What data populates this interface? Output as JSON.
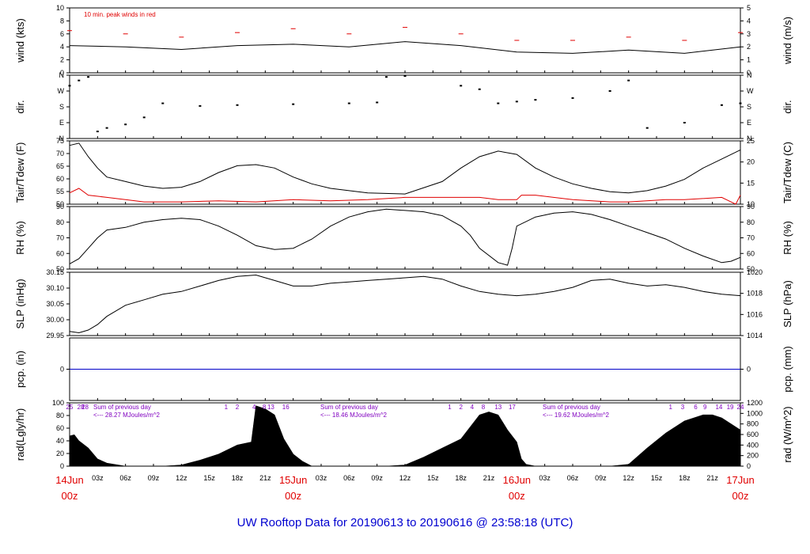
{
  "chart_data": {
    "type": "line",
    "title": "UW Rooftop Data for 20190613  to  20190616 @ 23:58:18  (UTC)",
    "x_tick_labels": [
      "03z",
      "06z",
      "09z",
      "12z",
      "15z",
      "18z",
      "21z",
      "03z",
      "06z",
      "09z",
      "12z",
      "15z",
      "18z",
      "21z",
      "03z",
      "06z",
      "09z",
      "12z",
      "15z",
      "18z",
      "21z"
    ],
    "day_labels": [
      {
        "date": "14Jun",
        "hour": "00z"
      },
      {
        "date": "15Jun",
        "hour": "00z"
      },
      {
        "date": "16Jun",
        "hour": "00z"
      },
      {
        "date": "17Jun",
        "hour": "00z"
      }
    ],
    "panels": [
      {
        "id": "wind",
        "ylabel_left": "wind (kts)",
        "ylabel_right": "wind (m/s)",
        "ylim": [
          0,
          10
        ],
        "left_ticks": [
          "0",
          "2",
          "4",
          "6",
          "8",
          "10"
        ],
        "right_ticks": [
          "0",
          "1",
          "2",
          "3",
          "4",
          "5"
        ],
        "annotation": "10 min. peak winds in red",
        "series": [
          {
            "name": "wind",
            "x": [
              0,
              6,
              12,
              18,
              24,
              30,
              36,
              42,
              48,
              54,
              60,
              66,
              72
            ],
            "y": [
              4.2,
              4.0,
              3.6,
              4.2,
              4.4,
              4.0,
              4.8,
              4.2,
              3.2,
              3.0,
              3.5,
              3.0,
              4.0
            ]
          },
          {
            "name": "peak",
            "x": [
              0,
              6,
              12,
              18,
              24,
              30,
              36,
              42,
              48,
              54,
              60,
              66,
              72
            ],
            "y": [
              6.5,
              6.0,
              5.5,
              6.2,
              6.8,
              6.0,
              7.0,
              6.0,
              5.0,
              5.0,
              5.5,
              5.0,
              6.2
            ]
          }
        ]
      },
      {
        "id": "dir",
        "ylabel_left": "dir.",
        "ylabel_right": "dir.",
        "ylim": [
          0,
          360
        ],
        "left_ticks": [
          "N",
          "E",
          "S",
          "W",
          "N"
        ],
        "right_ticks": [
          "N",
          "E",
          "S",
          "W",
          "N"
        ],
        "series": [
          {
            "name": "direction",
            "x": [
              0,
              1,
              2,
              3,
              4,
              6,
              8,
              10,
              14,
              18,
              24,
              30,
              33,
              34,
              36,
              42,
              44,
              46,
              48,
              50,
              54,
              58,
              60,
              62,
              66,
              70,
              72
            ],
            "y": [
              300,
              330,
              350,
              40,
              60,
              80,
              120,
              200,
              185,
              190,
              195,
              200,
              205,
              350,
              355,
              300,
              280,
              200,
              210,
              220,
              230,
              270,
              330,
              60,
              90,
              190,
              200
            ]
          }
        ]
      },
      {
        "id": "temp",
        "ylabel_left": "Tair/Tdew (F)",
        "ylabel_right": "Tair/Tdew (C)",
        "ylim": [
          50,
          78
        ],
        "left_ticks": [
          "50",
          "55",
          "60",
          "65",
          "70",
          "75"
        ],
        "right_ticks": [
          "10",
          "15",
          "20",
          "25"
        ],
        "series": [
          {
            "name": "Tair",
            "x": [
              0,
              1,
              2,
              3,
              4,
              6,
              8,
              10,
              12,
              14,
              16,
              18,
              20,
              22,
              24,
              26,
              28,
              30,
              32,
              36,
              40,
              42,
              44,
              46,
              48,
              50,
              52,
              54,
              56,
              58,
              60,
              62,
              64,
              66,
              68,
              70,
              72
            ],
            "y": [
              76,
              77,
              71,
              66,
              62,
              60,
              58,
              57,
              57.5,
              60,
              64,
              67,
              67.5,
              66,
              62,
              59,
              57,
              56,
              55,
              54.5,
              60,
              66,
              71,
              73.5,
              72,
              66,
              62,
              59,
              57,
              55.5,
              55,
              56,
              58,
              61,
              66,
              70,
              74
            ]
          },
          {
            "name": "Tdew",
            "x": [
              0,
              1,
              2,
              4,
              6,
              8,
              10,
              12,
              16,
              20,
              24,
              28,
              32,
              36,
              40,
              44,
              46,
              48,
              48.5,
              50,
              54,
              58,
              60,
              64,
              66,
              70,
              71.5,
              72
            ],
            "y": [
              55,
              57,
              54,
              53,
              52,
              51,
              51,
              51,
              51.5,
              51,
              52,
              51.5,
              52,
              53,
              53,
              53,
              52,
              52,
              54,
              54,
              52,
              51,
              51,
              52,
              52,
              53,
              50,
              54
            ]
          }
        ]
      },
      {
        "id": "rh",
        "ylabel_left": "RH (%)",
        "ylabel_right": "RH (%)",
        "ylim": [
          42,
          90
        ],
        "left_ticks": [
          "50",
          "60",
          "70",
          "80",
          "90"
        ],
        "right_ticks": [
          "50",
          "60",
          "70",
          "80",
          "90"
        ],
        "series": [
          {
            "name": "RH",
            "x": [
              0,
              1,
              2,
              3,
              4,
              6,
              8,
              10,
              12,
              14,
              16,
              18,
              20,
              22,
              24,
              26,
              28,
              30,
              32,
              34,
              36,
              38,
              40,
              42,
              43,
              44,
              46,
              47,
              47.5,
              48,
              50,
              52,
              54,
              56,
              58,
              60,
              62,
              64,
              66,
              68,
              70,
              71,
              72
            ],
            "y": [
              46,
              50,
              58,
              66,
              72,
              74,
              78,
              80,
              81,
              80,
              75,
              68,
              60,
              57,
              58,
              65,
              75,
              82,
              86,
              88,
              87,
              86,
              83,
              75,
              68,
              58,
              47,
              45,
              58,
              75,
              82,
              85,
              86,
              84,
              80,
              75,
              70,
              65,
              58,
              52,
              47,
              48,
              51
            ]
          }
        ]
      },
      {
        "id": "slp",
        "ylabel_left": "SLP (inHg)",
        "ylabel_right": "SLP (hPa)",
        "ylim": [
          29.94,
          30.17
        ],
        "left_ticks": [
          "29.95",
          "30.00",
          "30.05",
          "30.10",
          "30.15"
        ],
        "right_ticks": [
          "1014",
          "1016",
          "1018",
          "1020"
        ],
        "series": [
          {
            "name": "SLP",
            "x": [
              0,
              1,
              2,
              3,
              4,
              6,
              8,
              10,
              12,
              14,
              16,
              18,
              20,
              22,
              24,
              26,
              28,
              30,
              32,
              34,
              36,
              38,
              40,
              42,
              44,
              46,
              48,
              50,
              52,
              54,
              56,
              58,
              60,
              62,
              64,
              66,
              68,
              70,
              72
            ],
            "y": [
              29.955,
              29.95,
              29.96,
              29.98,
              30.01,
              30.05,
              30.07,
              30.09,
              30.1,
              30.12,
              30.14,
              30.155,
              30.16,
              30.14,
              30.12,
              30.12,
              30.13,
              30.135,
              30.14,
              30.145,
              30.15,
              30.155,
              30.145,
              30.12,
              30.1,
              30.09,
              30.085,
              30.09,
              30.1,
              30.115,
              30.14,
              30.145,
              30.13,
              30.12,
              30.125,
              30.115,
              30.1,
              30.09,
              30.085
            ]
          }
        ]
      },
      {
        "id": "pcp",
        "ylabel_left": "pcp. (in)",
        "ylabel_right": "pcp. (mm)",
        "ylim": [
          -1,
          1
        ],
        "left_ticks": [
          "0"
        ],
        "right_ticks": [
          "0"
        ],
        "series": [
          {
            "name": "pcp",
            "x": [
              0,
              72
            ],
            "y": [
              0,
              0
            ]
          }
        ]
      },
      {
        "id": "rad",
        "ylabel_left": "rad(Lgly/hr)",
        "ylabel_right": "rad (W/m^2)",
        "ylim": [
          0,
          105
        ],
        "left_ticks": [
          "0",
          "20",
          "40",
          "60",
          "80",
          "100"
        ],
        "right_ticks": [
          "0",
          "200",
          "400",
          "600",
          "800",
          "1000",
          "1200"
        ],
        "annotations": [
          {
            "count": "28",
            "text": "Sum of previous day",
            "value": "<--- 28.27 MJoules/m^2"
          },
          {
            "count": "",
            "text": "Sum of previous day",
            "value": "<--- 18.46 MJoules/m^2"
          },
          {
            "count": "",
            "text": "Sum of previous day",
            "value": "<--- 19.62 MJoules/m^2"
          }
        ],
        "hour_marks": [
          "25",
          "28",
          "1",
          "2",
          "4",
          "8",
          "13",
          "16",
          "1",
          "2",
          "4",
          "8",
          "13",
          "17",
          "1",
          "3",
          "6",
          "9",
          "14",
          "19",
          "24"
        ],
        "series": [
          {
            "name": "radiation",
            "x": [
              0,
              0.5,
              1,
              2,
              3,
              4,
              6,
              10,
              12,
              14,
              16,
              18,
              19.5,
              20,
              21,
              22,
              23,
              24,
              25,
              26,
              30,
              34,
              36,
              38,
              40,
              42,
              44,
              45,
              46,
              47,
              48,
              48.5,
              49,
              50,
              54,
              58,
              60,
              62,
              64,
              66,
              68,
              69,
              70,
              72
            ],
            "y": [
              50,
              52,
              42,
              30,
              12,
              5,
              0,
              0,
              2,
              10,
              20,
              35,
              40,
              100,
              95,
              85,
              45,
              20,
              8,
              0,
              0,
              0,
              2,
              15,
              30,
              45,
              85,
              90,
              85,
              60,
              40,
              12,
              3,
              0,
              0,
              0,
              3,
              30,
              55,
              75,
              85,
              85,
              80,
              60
            ]
          }
        ]
      }
    ]
  }
}
